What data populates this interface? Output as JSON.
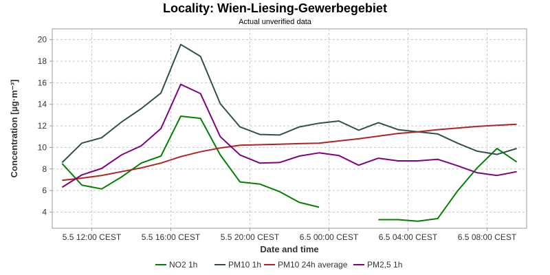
{
  "chart_data": {
    "type": "line",
    "title": "Locality: Wien-Liesing-Gewerbegebiet",
    "subtitle": "Actual unverified data",
    "xlabel": "Date and time",
    "ylabel": "Concentration [µg·m⁻³]",
    "ylim": [
      2.5,
      21
    ],
    "yticks": [
      4,
      6,
      8,
      10,
      12,
      14,
      16,
      18,
      20
    ],
    "xlim": [
      "2023-05-05 10:00",
      "2023-05-06 10:00"
    ],
    "xticks": [
      {
        "x": "2023-05-05 12:00",
        "label": "5.5 12:00 CEST"
      },
      {
        "x": "2023-05-05 16:00",
        "label": "5.5 16:00 CEST"
      },
      {
        "x": "2023-05-05 20:00",
        "label": "5.5 20:00 CEST"
      },
      {
        "x": "2023-05-06 00:00",
        "label": "6.5 00:00 CEST"
      },
      {
        "x": "2023-05-06 04:00",
        "label": "6.5 04:00 CEST"
      },
      {
        "x": "2023-05-06 08:00",
        "label": "6.5 08:00 CEST"
      }
    ],
    "x": [
      "2023-05-05 10:30",
      "2023-05-05 11:30",
      "2023-05-05 12:30",
      "2023-05-05 13:30",
      "2023-05-05 14:30",
      "2023-05-05 15:30",
      "2023-05-05 16:30",
      "2023-05-05 17:30",
      "2023-05-05 18:30",
      "2023-05-05 19:30",
      "2023-05-05 20:30",
      "2023-05-05 21:30",
      "2023-05-05 22:30",
      "2023-05-05 23:30",
      "2023-05-06 00:30",
      "2023-05-06 01:30",
      "2023-05-06 02:30",
      "2023-05-06 03:30",
      "2023-05-06 04:30",
      "2023-05-06 05:30",
      "2023-05-06 06:30",
      "2023-05-06 07:30",
      "2023-05-06 08:30",
      "2023-05-06 09:30"
    ],
    "grid": true,
    "legend": "bottom",
    "series": [
      {
        "name": "NO2 1h",
        "color": "#008000",
        "values": [
          8.5,
          6.5,
          6.15,
          7.25,
          8.55,
          9.2,
          12.9,
          12.7,
          9.3,
          6.8,
          6.6,
          5.9,
          4.9,
          4.45,
          null,
          null,
          3.3,
          3.3,
          3.15,
          3.4,
          5.95,
          8.1,
          9.9,
          8.65
        ]
      },
      {
        "name": "PM10 1h",
        "color": "#2F4F4F",
        "values": [
          8.6,
          10.4,
          10.9,
          12.35,
          13.6,
          15.05,
          19.55,
          18.45,
          14.05,
          11.9,
          11.2,
          11.15,
          11.9,
          12.25,
          12.45,
          11.6,
          12.3,
          11.65,
          11.45,
          11.25,
          10.4,
          9.65,
          9.35,
          9.9
        ]
      },
      {
        "name": "PM10 24h average",
        "color": "#B22222",
        "values": [
          6.95,
          7.15,
          7.4,
          7.75,
          8.1,
          8.55,
          9.15,
          9.6,
          9.95,
          10.2,
          10.25,
          10.3,
          10.35,
          10.4,
          10.6,
          10.8,
          11.05,
          11.3,
          11.45,
          11.65,
          11.8,
          11.95,
          12.05,
          12.15
        ]
      },
      {
        "name": "PM2,5 1h",
        "color": "#800080",
        "values": [
          6.3,
          7.45,
          8.05,
          9.3,
          10.15,
          11.75,
          15.85,
          15.0,
          11.0,
          9.3,
          8.55,
          8.6,
          9.2,
          9.5,
          9.25,
          8.35,
          9.0,
          8.75,
          8.75,
          8.9,
          8.3,
          7.65,
          7.4,
          7.75
        ]
      }
    ]
  }
}
